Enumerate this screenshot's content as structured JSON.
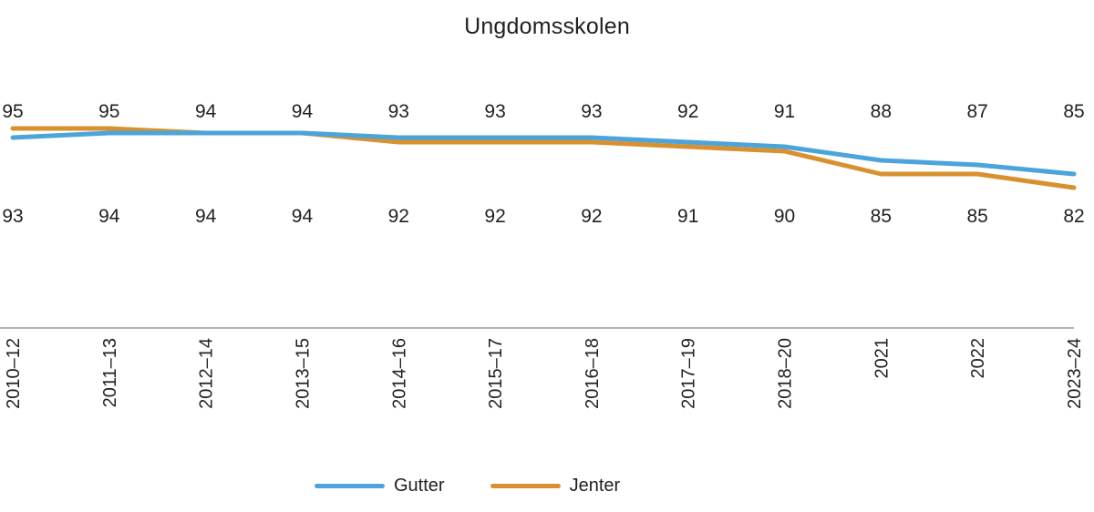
{
  "chart_data": {
    "type": "line",
    "title": "Ungdomsskolen",
    "categories": [
      "2010–12",
      "2011–13",
      "2012–14",
      "2013–15",
      "2014–16",
      "2015–17",
      "2016–18",
      "2017–19",
      "2018–20",
      "2021",
      "2022",
      "2023–24"
    ],
    "series": [
      {
        "name": "Gutter",
        "color": "#4ba4dc",
        "values": [
          93,
          94,
          94,
          94,
          93,
          93,
          93,
          92,
          91,
          88,
          87,
          85
        ]
      },
      {
        "name": "Jenter",
        "color": "#d8912e",
        "values": [
          95,
          95,
          94,
          94,
          92,
          92,
          92,
          91,
          90,
          85,
          85,
          82
        ]
      }
    ],
    "upper_labels": [
      95,
      95,
      94,
      94,
      93,
      93,
      93,
      92,
      91,
      88,
      87,
      85
    ],
    "lower_labels": [
      93,
      94,
      94,
      94,
      92,
      92,
      92,
      91,
      90,
      85,
      85,
      82
    ],
    "legend_position": "bottom",
    "grid": "off",
    "axis_color": "#b3b3b5",
    "text_color": "#231f20"
  }
}
